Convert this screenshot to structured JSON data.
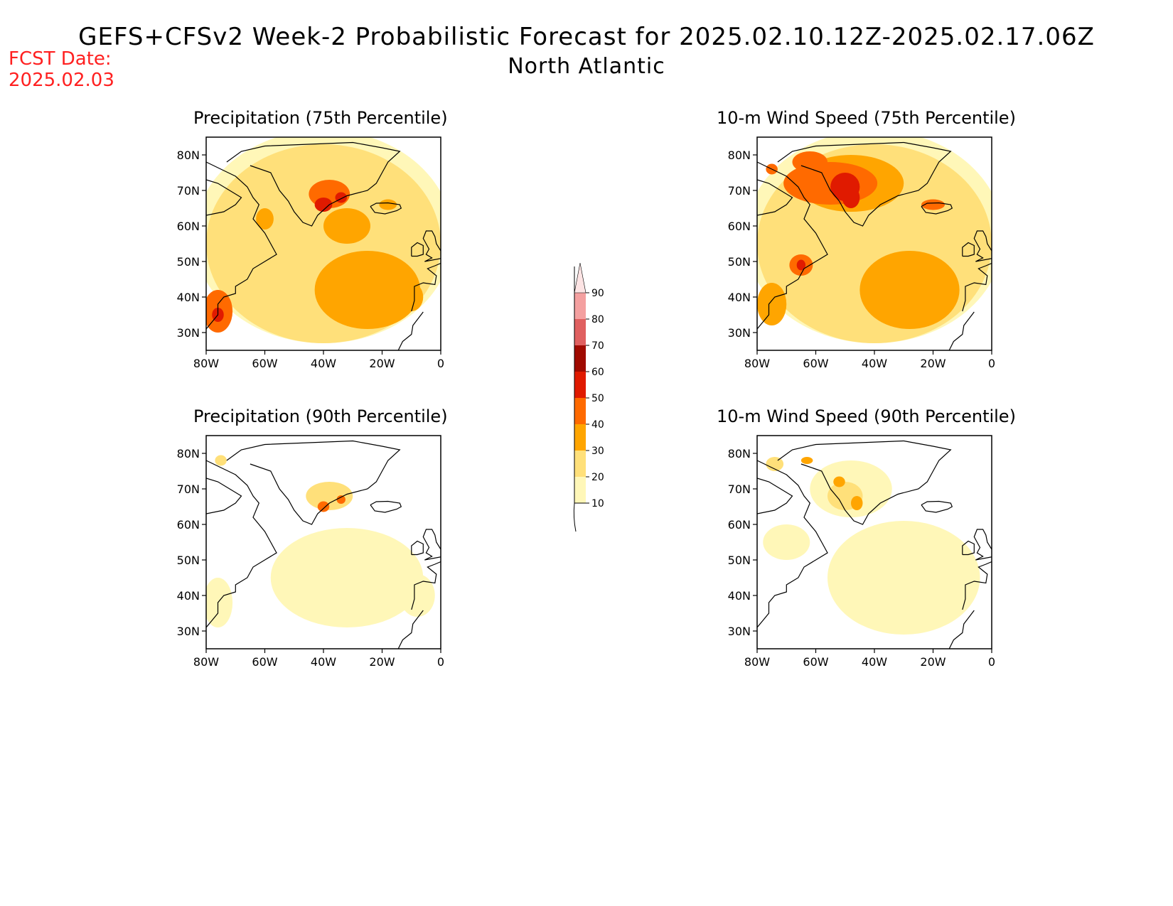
{
  "header": {
    "title": "GEFS+CFSv2 Week-2 Probabilistic Forecast for 2025.02.10.12Z-2025.02.17.06Z",
    "region": "North Atlantic",
    "fcst_label": "FCST Date:",
    "fcst_date": "2025.02.03"
  },
  "axes": {
    "lat_ticks": [
      "30N",
      "40N",
      "50N",
      "60N",
      "70N",
      "80N"
    ],
    "lon_ticks": [
      "80W",
      "60W",
      "40W",
      "20W",
      "0"
    ]
  },
  "panels": [
    {
      "title": "Precipitation (75th Percentile)"
    },
    {
      "title": "10-m Wind Speed (75th Percentile)"
    },
    {
      "title": "Precipitation (90th Percentile)"
    },
    {
      "title": "10-m Wind Speed (90th Percentile)"
    }
  ],
  "colorbar": {
    "levels": [
      "10",
      "20",
      "30",
      "40",
      "50",
      "60",
      "70",
      "80",
      "90"
    ],
    "colors": [
      "#fff7b8",
      "#ffe07a",
      "#ffa500",
      "#ff6a00",
      "#e01a00",
      "#a00a00",
      "#e06060",
      "#f4a0a0",
      "#fde4e4"
    ]
  }
}
